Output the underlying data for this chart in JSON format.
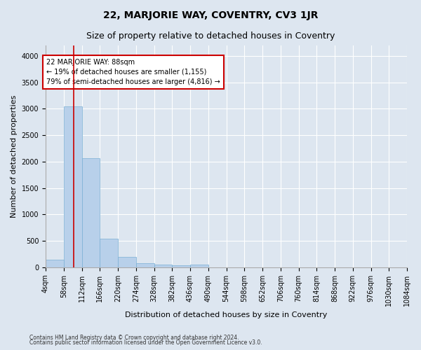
{
  "title": "22, MARJORIE WAY, COVENTRY, CV3 1JR",
  "subtitle": "Size of property relative to detached houses in Coventry",
  "xlabel": "Distribution of detached houses by size in Coventry",
  "ylabel": "Number of detached properties",
  "footer_line1": "Contains HM Land Registry data © Crown copyright and database right 2024.",
  "footer_line2": "Contains public sector information licensed under the Open Government Licence v3.0.",
  "bin_edges": [
    4,
    58,
    112,
    166,
    220,
    274,
    328,
    382,
    436,
    490,
    544,
    598,
    652,
    706,
    760,
    814,
    868,
    922,
    976,
    1030,
    1084
  ],
  "bar_heights": [
    140,
    3050,
    2060,
    545,
    200,
    80,
    55,
    30,
    50,
    0,
    0,
    0,
    0,
    0,
    0,
    0,
    0,
    0,
    0,
    0
  ],
  "bar_color": "#b8d0ea",
  "bar_edge_color": "#7aafd4",
  "vline_x": 88,
  "vline_color": "#cc0000",
  "annotation_text": "22 MARJORIE WAY: 88sqm\n← 19% of detached houses are smaller (1,155)\n79% of semi-detached houses are larger (4,816) →",
  "annotation_box_color": "white",
  "annotation_box_edge": "#cc0000",
  "ylim": [
    0,
    4200
  ],
  "xlim": [
    4,
    1084
  ],
  "background_color": "#dde6f0",
  "plot_background": "#dde6f0",
  "grid_color": "white",
  "title_fontsize": 10,
  "subtitle_fontsize": 9,
  "ylabel_fontsize": 8,
  "xlabel_fontsize": 8,
  "tick_fontsize": 7,
  "yticks": [
    0,
    500,
    1000,
    1500,
    2000,
    2500,
    3000,
    3500,
    4000
  ]
}
